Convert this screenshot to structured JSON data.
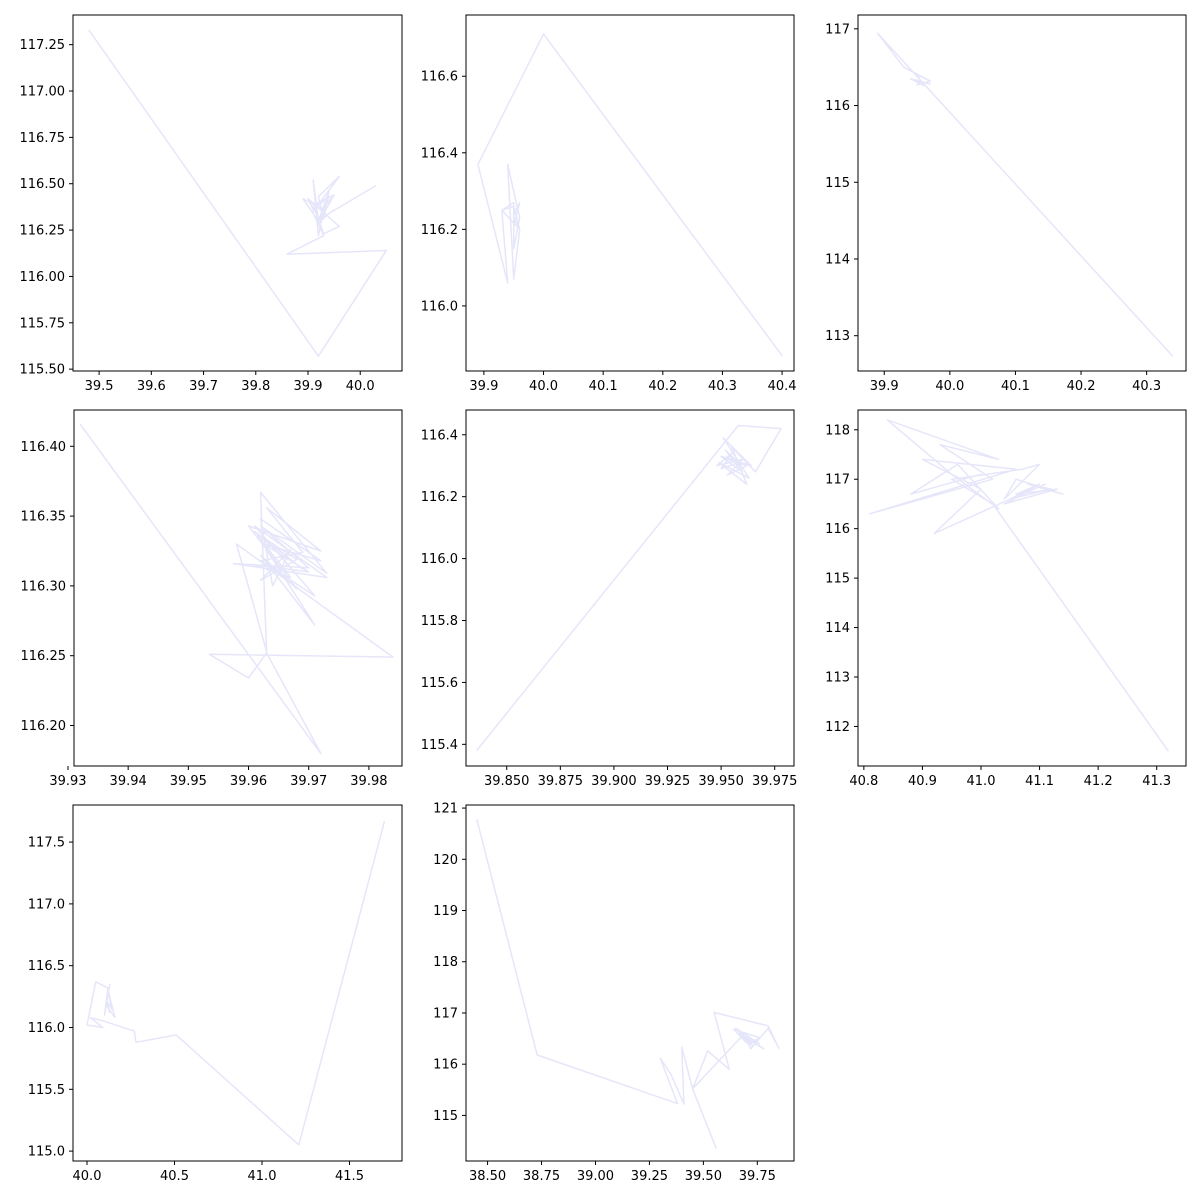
{
  "figure": {
    "background": "#ffffff"
  },
  "chart_data": [
    {
      "type": "line",
      "title": "",
      "xlabel": "",
      "ylabel": "",
      "xlim": [
        39.45,
        40.08
      ],
      "ylim": [
        115.49,
        117.41
      ],
      "xticks": [
        "39.5",
        "39.6",
        "39.7",
        "39.8",
        "39.9",
        "40.0"
      ],
      "yticks": [
        "115.50",
        "115.75",
        "116.00",
        "116.25",
        "116.50",
        "116.75",
        "117.00",
        "117.25"
      ],
      "grid": false,
      "color": "#e6e6fa",
      "series": [
        {
          "x": [
            39.48,
            39.92,
            40.05,
            39.86,
            39.93,
            39.91,
            39.89,
            39.93,
            39.92,
            39.91,
            39.92,
            39.94,
            39.93,
            39.92,
            39.96,
            39.91,
            39.92,
            39.95,
            39.93,
            39.92,
            39.94,
            39.91,
            39.9,
            39.96,
            39.93,
            39.91,
            39.95,
            39.92,
            39.94,
            40.03
          ],
          "y": [
            117.33,
            115.57,
            116.14,
            116.12,
            116.22,
            116.34,
            116.42,
            116.36,
            116.22,
            116.52,
            116.3,
            116.46,
            116.31,
            116.43,
            116.54,
            116.35,
            116.4,
            116.44,
            116.37,
            116.28,
            116.43,
            116.36,
            116.42,
            116.27,
            116.23,
            116.38,
            116.44,
            116.29,
            116.34,
            116.49
          ]
        }
      ]
    },
    {
      "type": "line",
      "title": "",
      "xlabel": "",
      "ylabel": "",
      "xlim": [
        39.87,
        40.42
      ],
      "ylim": [
        115.83,
        116.76
      ],
      "xticks": [
        "39.9",
        "40.0",
        "40.1",
        "40.2",
        "40.3",
        "40.4"
      ],
      "yticks": [
        "116.0",
        "116.2",
        "116.4",
        "116.6"
      ],
      "grid": false,
      "color": "#e6e6fa",
      "series": [
        {
          "x": [
            40.4,
            40.0,
            39.89,
            39.94,
            39.93,
            39.95,
            39.96,
            39.95,
            39.94,
            39.96,
            39.95,
            39.95,
            39.93,
            39.96,
            39.95,
            39.95,
            39.96,
            39.95
          ],
          "y": [
            115.87,
            116.71,
            116.37,
            116.06,
            116.25,
            116.26,
            116.2,
            116.07,
            116.37,
            116.23,
            116.15,
            116.27,
            116.25,
            116.2,
            116.23,
            116.21,
            116.27,
            116.24
          ]
        }
      ]
    },
    {
      "type": "line",
      "title": "",
      "xlabel": "",
      "ylabel": "",
      "xlim": [
        39.86,
        40.36
      ],
      "ylim": [
        112.54,
        117.18
      ],
      "xticks": [
        "39.9",
        "40.0",
        "40.1",
        "40.2",
        "40.3"
      ],
      "yticks": [
        "113",
        "114",
        "115",
        "116",
        "117"
      ],
      "grid": false,
      "color": "#e6e6fa",
      "series": [
        {
          "x": [
            40.34,
            39.89,
            39.93,
            39.97,
            39.95,
            39.96,
            39.94,
            39.97,
            39.95,
            39.96,
            39.95,
            39.97,
            39.96,
            39.95
          ],
          "y": [
            112.73,
            116.94,
            116.5,
            116.32,
            116.4,
            116.26,
            116.35,
            116.28,
            116.33,
            116.3,
            116.27,
            116.32,
            116.29,
            116.31
          ]
        }
      ]
    },
    {
      "type": "line",
      "title": "",
      "xlabel": "",
      "ylabel": "",
      "xlim": [
        39.931,
        39.9855
      ],
      "ylim": [
        116.171,
        116.426
      ],
      "xticks": [
        "39.93",
        "39.94",
        "39.95",
        "39.96",
        "39.97",
        "39.98"
      ],
      "yticks": [
        "116.20",
        "116.25",
        "116.30",
        "116.35",
        "116.40"
      ],
      "grid": false,
      "color": "#e6e6fa",
      "series": [
        {
          "x": [
            39.932,
            39.972,
            39.963,
            39.96,
            39.9535,
            39.984,
            39.958,
            39.963,
            39.962,
            39.973,
            39.962,
            39.97,
            39.9575,
            39.973,
            39.961,
            39.971,
            39.962,
            39.969,
            39.963,
            39.972,
            39.96,
            39.968,
            39.962,
            39.971,
            39.9615,
            39.967,
            39.961,
            39.97,
            39.9625,
            39.972,
            39.962,
            39.964,
            39.967,
            39.962,
            39.968,
            39.963,
            39.969,
            39.961,
            39.966,
            39.964
          ],
          "y": [
            116.416,
            116.18,
            116.252,
            116.234,
            116.251,
            116.249,
            116.33,
            116.253,
            116.367,
            116.309,
            116.343,
            116.313,
            116.316,
            116.306,
            116.343,
            116.293,
            116.318,
            116.324,
            116.356,
            116.325,
            116.343,
            116.298,
            116.322,
            116.272,
            116.336,
            116.306,
            116.315,
            116.31,
            116.33,
            116.318,
            116.348,
            116.3,
            116.326,
            116.304,
            116.319,
            116.333,
            116.312,
            116.339,
            116.32,
            116.327
          ]
        }
      ]
    },
    {
      "type": "line",
      "title": "",
      "xlabel": "",
      "ylabel": "",
      "xlim": [
        39.831,
        39.984
      ],
      "ylim": [
        115.33,
        116.48
      ],
      "xticks": [
        "39.850",
        "39.875",
        "39.900",
        "39.925",
        "39.950",
        "39.975"
      ],
      "yticks": [
        "115.4",
        "115.6",
        "115.8",
        "116.0",
        "116.2",
        "116.4"
      ],
      "grid": false,
      "color": "#e6e6fa",
      "series": [
        {
          "x": [
            39.836,
            39.958,
            39.978,
            39.966,
            39.955,
            39.962,
            39.949,
            39.963,
            39.951,
            39.964,
            39.95,
            39.96,
            39.952,
            39.958,
            39.95,
            39.955,
            39.948,
            39.96,
            39.953,
            39.962,
            39.95,
            39.957
          ],
          "y": [
            115.38,
            116.43,
            116.42,
            116.28,
            116.36,
            116.24,
            116.31,
            116.26,
            116.39,
            116.3,
            116.33,
            116.28,
            116.35,
            116.31,
            116.29,
            116.34,
            116.3,
            116.32,
            116.27,
            116.3,
            116.33,
            116.31
          ]
        }
      ]
    },
    {
      "type": "line",
      "title": "",
      "xlabel": "",
      "ylabel": "",
      "xlim": [
        40.79,
        41.35
      ],
      "ylim": [
        111.2,
        118.4
      ],
      "xticks": [
        "40.8",
        "40.9",
        "41.0",
        "41.1",
        "41.2",
        "41.3"
      ],
      "yticks": [
        "112",
        "113",
        "114",
        "115",
        "116",
        "117",
        "118"
      ],
      "grid": false,
      "color": "#e6e6fa",
      "series": [
        {
          "x": [
            41.32,
            41.02,
            40.95,
            41.07,
            41.1,
            41.04,
            41.06,
            41.14,
            41.08,
            41.12,
            41.05,
            41.1,
            41.06,
            41.13,
            41.04,
            41.09,
            41.07,
            41.11,
            41.05,
            40.92,
            41.0,
            40.9,
            41.06,
            40.81,
            41.02,
            40.93,
            41.03,
            40.84,
            40.95,
            41.03,
            40.96,
            40.88,
            41.0
          ],
          "y": [
            111.5,
            116.5,
            117.0,
            117.2,
            117.3,
            116.6,
            117.0,
            116.7,
            116.9,
            116.8,
            116.6,
            116.9,
            116.7,
            116.8,
            116.5,
            116.8,
            116.7,
            116.9,
            116.6,
            115.9,
            116.8,
            117.4,
            117.2,
            116.3,
            117.0,
            117.7,
            117.4,
            118.2,
            117.1,
            116.4,
            117.3,
            116.7,
            117.1
          ]
        }
      ]
    },
    {
      "type": "line",
      "title": "",
      "xlabel": "",
      "ylabel": "",
      "xlim": [
        39.92,
        41.8
      ],
      "ylim": [
        114.92,
        117.8
      ],
      "xticks": [
        "40.0",
        "40.5",
        "41.0",
        "41.5"
      ],
      "yticks": [
        "115.0",
        "115.5",
        "116.0",
        "116.5",
        "117.0",
        "117.5"
      ],
      "grid": false,
      "color": "#e6e6fa",
      "series": [
        {
          "x": [
            41.7,
            41.21,
            40.51,
            40.28,
            40.27,
            40.1,
            40.02,
            40.09,
            40.0,
            40.05,
            40.12,
            40.1,
            40.13,
            40.11,
            40.16,
            40.12,
            40.14,
            40.11,
            40.13
          ],
          "y": [
            117.67,
            115.05,
            115.94,
            115.88,
            115.97,
            116.05,
            116.08,
            116.0,
            116.02,
            116.37,
            116.32,
            116.1,
            116.35,
            116.18,
            116.08,
            116.3,
            116.15,
            116.22,
            116.12
          ]
        }
      ]
    },
    {
      "type": "line",
      "title": "",
      "xlabel": "",
      "ylabel": "",
      "xlim": [
        38.4,
        39.92
      ],
      "ylim": [
        114.11,
        121.06
      ],
      "xticks": [
        "38.50",
        "38.75",
        "39.00",
        "39.25",
        "39.50",
        "39.75"
      ],
      "yticks": [
        "115",
        "116",
        "117",
        "118",
        "119",
        "120",
        "121"
      ],
      "grid": false,
      "color": "#e6e6fa",
      "series": [
        {
          "x": [
            39.56,
            39.45,
            39.52,
            39.62,
            39.55,
            39.8,
            39.85,
            39.8,
            39.75,
            39.72,
            39.68,
            39.76,
            39.65,
            39.73,
            39.69,
            39.78,
            39.66,
            39.74,
            39.71,
            39.76,
            39.64,
            39.7,
            39.68,
            39.45,
            39.4,
            39.41,
            39.35,
            39.3,
            39.38,
            38.73,
            38.45
          ],
          "y": [
            114.35,
            115.52,
            116.26,
            115.9,
            117.01,
            116.75,
            116.31,
            116.7,
            116.45,
            116.3,
            116.62,
            116.4,
            116.7,
            116.35,
            116.55,
            116.3,
            116.6,
            116.45,
            116.38,
            116.52,
            116.68,
            116.42,
            116.55,
            115.52,
            116.33,
            115.22,
            115.8,
            116.12,
            115.23,
            116.18,
            120.78
          ]
        }
      ]
    }
  ]
}
